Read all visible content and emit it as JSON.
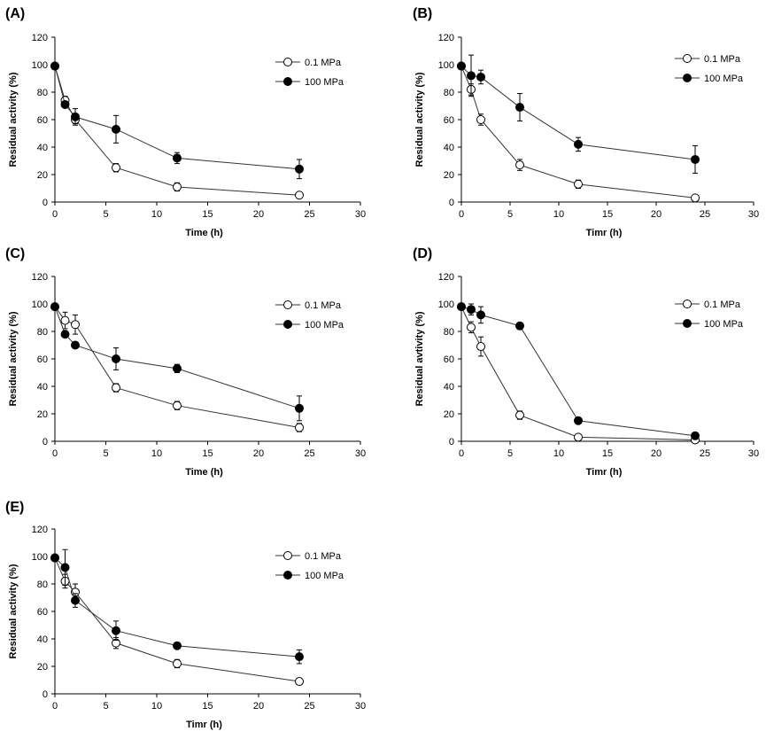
{
  "chart_data": [
    {
      "type": "line",
      "panel_label": "(A)",
      "xlabel": "Time (h)",
      "ylabel": "Residual activity (%)",
      "xlim": [
        0,
        30
      ],
      "ylim": [
        0,
        120
      ],
      "xticks": [
        "0",
        "5",
        "10",
        "15",
        "20",
        "25",
        "30"
      ],
      "yticks": [
        "0",
        "20",
        "40",
        "60",
        "80",
        "100",
        "120"
      ],
      "legend_position": "top-right",
      "series": [
        {
          "name": "0.1 MPa",
          "marker": "open-circle",
          "x": [
            0,
            1,
            2,
            6,
            12,
            24
          ],
          "y": [
            99,
            74,
            60,
            25,
            11,
            5
          ],
          "err": [
            2,
            3,
            3,
            3,
            3,
            2
          ]
        },
        {
          "name": "100 MPa",
          "marker": "filled-circle",
          "x": [
            0,
            1,
            2,
            6,
            12,
            24
          ],
          "y": [
            99,
            71,
            62,
            53,
            32,
            24
          ],
          "err": [
            2,
            2,
            6,
            10,
            4,
            7
          ]
        }
      ]
    },
    {
      "type": "line",
      "panel_label": "(B)",
      "xlabel": "Timr (h)",
      "ylabel": "Residual activity (%)",
      "xlim": [
        0,
        30
      ],
      "ylim": [
        0,
        120
      ],
      "xticks": [
        "0",
        "5",
        "10",
        "15",
        "20",
        "25",
        "30"
      ],
      "yticks": [
        "0",
        "20",
        "40",
        "60",
        "80",
        "100",
        "120"
      ],
      "legend_position": "top-right",
      "series": [
        {
          "name": "0.1 MPa",
          "marker": "open-circle",
          "x": [
            0,
            1,
            2,
            6,
            12,
            24
          ],
          "y": [
            99,
            82,
            60,
            27,
            13,
            3
          ],
          "err": [
            2,
            4,
            4,
            4,
            3,
            2
          ]
        },
        {
          "name": "100 MPa",
          "marker": "filled-circle",
          "x": [
            0,
            1,
            2,
            6,
            12,
            24
          ],
          "y": [
            99,
            92,
            91,
            69,
            42,
            31
          ],
          "err": [
            2,
            15,
            5,
            10,
            5,
            10
          ]
        }
      ]
    },
    {
      "type": "line",
      "panel_label": "(C)",
      "xlabel": "Time (h)",
      "ylabel": "Residual activity (%)",
      "xlim": [
        0,
        30
      ],
      "ylim": [
        0,
        120
      ],
      "xticks": [
        "0",
        "5",
        "10",
        "15",
        "20",
        "25",
        "30"
      ],
      "yticks": [
        "0",
        "20",
        "40",
        "60",
        "80",
        "100",
        "120"
      ],
      "legend_position": "top-right",
      "series": [
        {
          "name": "0.1 MPa",
          "marker": "open-circle",
          "x": [
            0,
            1,
            2,
            6,
            12,
            24
          ],
          "y": [
            98,
            88,
            85,
            39,
            26,
            10
          ],
          "err": [
            2,
            6,
            7,
            3,
            3,
            3
          ]
        },
        {
          "name": "100 MPa",
          "marker": "filled-circle",
          "x": [
            0,
            1,
            2,
            6,
            12,
            24
          ],
          "y": [
            98,
            78,
            70,
            60,
            53,
            24
          ],
          "err": [
            2,
            2,
            2,
            8,
            3,
            9
          ]
        }
      ]
    },
    {
      "type": "line",
      "panel_label": "(D)",
      "xlabel": "Timr (h)",
      "ylabel": "Residual avtivity (%)",
      "xlim": [
        0,
        30
      ],
      "ylim": [
        0,
        120
      ],
      "xticks": [
        "0",
        "5",
        "10",
        "15",
        "20",
        "25",
        "30"
      ],
      "yticks": [
        "0",
        "20",
        "40",
        "60",
        "80",
        "100",
        "120"
      ],
      "legend_position": "top-right",
      "series": [
        {
          "name": "0.1 MPa",
          "marker": "open-circle",
          "x": [
            0,
            1,
            2,
            6,
            12,
            24
          ],
          "y": [
            98,
            83,
            69,
            19,
            3,
            1
          ],
          "err": [
            2,
            4,
            7,
            3,
            2,
            1
          ]
        },
        {
          "name": "100 MPa",
          "marker": "filled-circle",
          "x": [
            0,
            1,
            2,
            6,
            12,
            24
          ],
          "y": [
            98,
            96,
            92,
            84,
            15,
            4
          ],
          "err": [
            2,
            4,
            6,
            2,
            2,
            1
          ]
        }
      ]
    },
    {
      "type": "line",
      "panel_label": "(E)",
      "xlabel": "Timr (h)",
      "ylabel": "Residual activity (%)",
      "xlim": [
        0,
        30
      ],
      "ylim": [
        0,
        120
      ],
      "xticks": [
        "0",
        "5",
        "10",
        "15",
        "20",
        "25",
        "30"
      ],
      "yticks": [
        "0",
        "20",
        "40",
        "60",
        "80",
        "100",
        "120"
      ],
      "legend_position": "top-right",
      "series": [
        {
          "name": "0.1 MPa",
          "marker": "open-circle",
          "x": [
            0,
            1,
            2,
            6,
            12,
            24
          ],
          "y": [
            99,
            82,
            74,
            37,
            22,
            9
          ],
          "err": [
            2,
            5,
            6,
            4,
            3,
            2
          ]
        },
        {
          "name": "100 MPa",
          "marker": "filled-circle",
          "x": [
            0,
            1,
            2,
            6,
            12,
            24
          ],
          "y": [
            99,
            92,
            68,
            46,
            35,
            27
          ],
          "err": [
            2,
            13,
            5,
            7,
            2,
            5
          ]
        }
      ]
    }
  ]
}
